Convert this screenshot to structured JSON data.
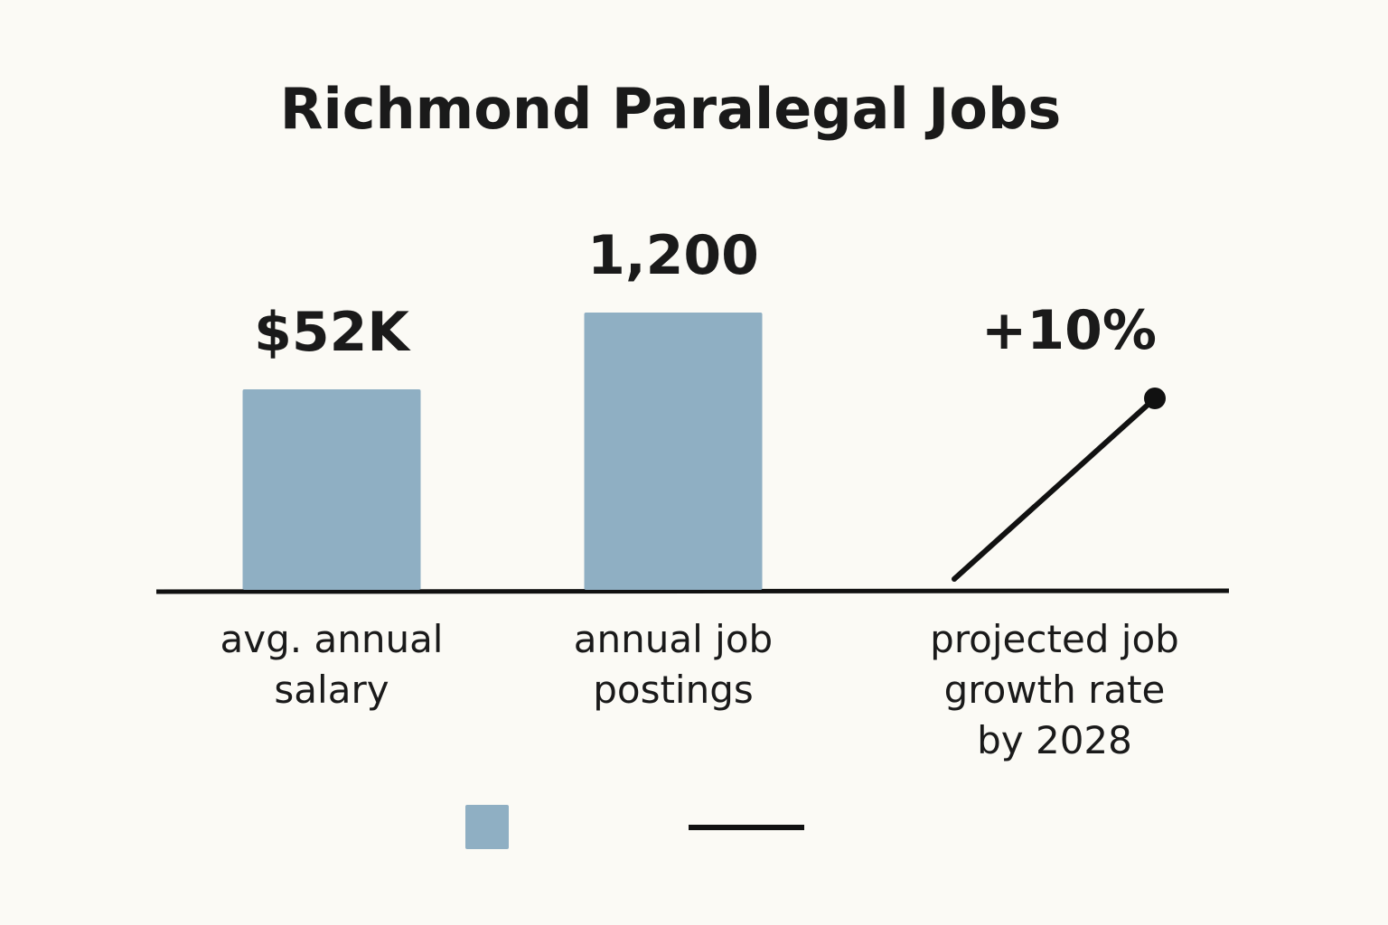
{
  "title": "Richmond Paralegal Jobs",
  "chart_data": [
    {
      "type": "bar",
      "categories": [
        "avg. annual\nsalary"
      ],
      "values": [
        52000
      ],
      "value_labels": [
        "$52K"
      ],
      "color": "#8fafc3"
    },
    {
      "type": "bar",
      "categories": [
        "annual job\npostings"
      ],
      "values": [
        1200
      ],
      "value_labels": [
        "1,200"
      ],
      "color": "#8fafc3"
    },
    {
      "type": "line",
      "categories": [
        "projected job\ngrowth rate\nby 2028"
      ],
      "values": [
        10
      ],
      "value_labels": [
        "+10%"
      ],
      "color": "#111111"
    }
  ]
}
